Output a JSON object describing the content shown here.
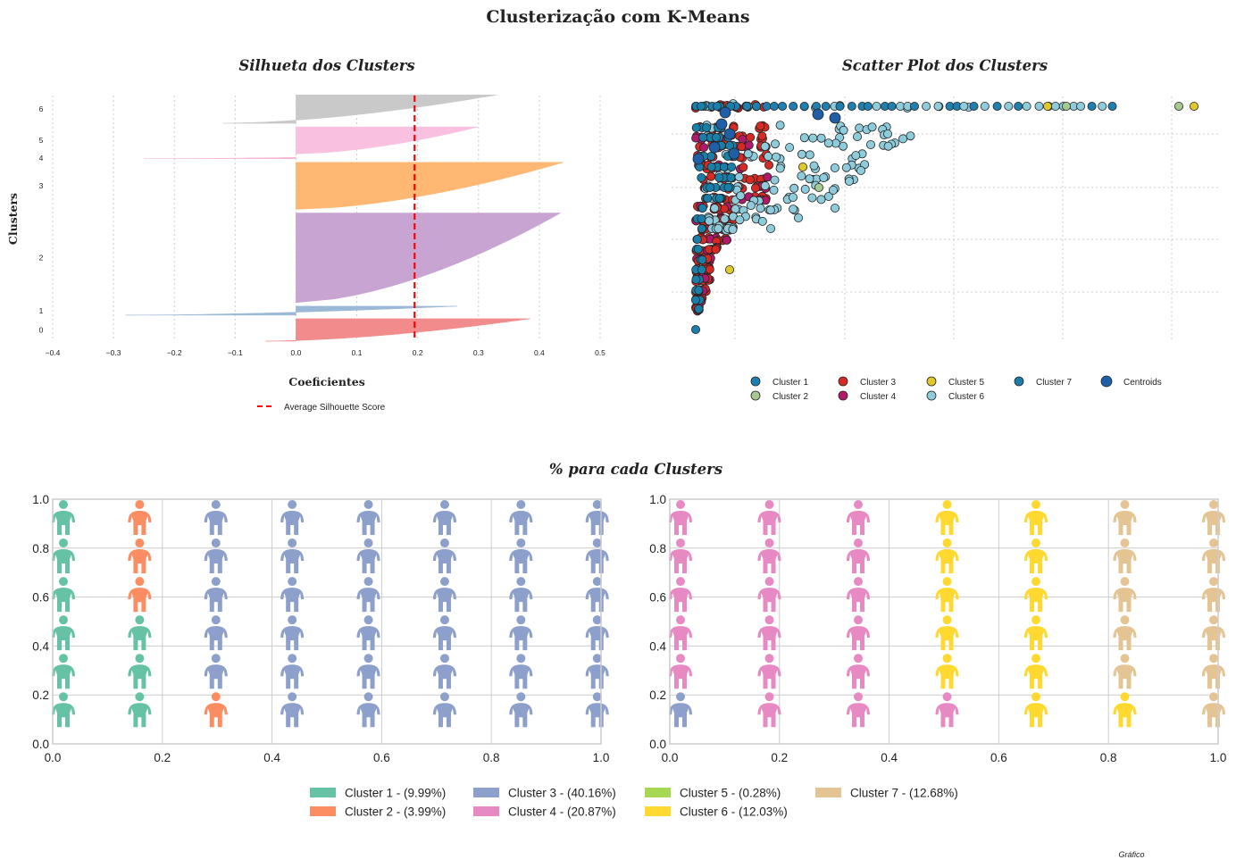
{
  "figure": {
    "title": "Clusterização com K-Means",
    "footer": "Gráfico"
  },
  "chart_data": [
    {
      "type": "area",
      "id": "silhouette",
      "title": "Silhueta dos Clusters",
      "xlabel": "Coeficientes",
      "ylabel": "Clusters",
      "xlim": [
        -0.4,
        0.5
      ],
      "xticks": [
        "−0.4",
        "−0.3",
        "−0.2",
        "−0.1",
        "0.0",
        "0.1",
        "0.2",
        "0.3",
        "0.4",
        "0.5"
      ],
      "cluster_labels": [
        "0",
        "1",
        "2",
        "3",
        "4",
        "5",
        "6"
      ],
      "average_silhouette_score": 0.195,
      "average_label": "Average Silhouette Score",
      "clusters": [
        {
          "label": "0",
          "color": "#f28c8c",
          "min": -0.05,
          "max": 0.385,
          "size": 0.1
        },
        {
          "label": "1",
          "color": "#9bb8d6",
          "min": -0.28,
          "max": 0.265,
          "size": 0.04
        },
        {
          "label": "2",
          "color": "#c8a4d2",
          "min": 0.0,
          "max": 0.435,
          "size": 0.4
        },
        {
          "label": "3",
          "color": "#ffb874",
          "min": 0.0,
          "max": 0.44,
          "size": 0.21
        },
        {
          "label": "4",
          "color": "#f7b6d2",
          "min": -0.25,
          "max": 0.0,
          "size": 0.003
        },
        {
          "label": "5",
          "color": "#f9c0df",
          "min": 0.0,
          "max": 0.3,
          "size": 0.12
        },
        {
          "label": "6",
          "color": "#c9c9c9",
          "min": -0.12,
          "max": 0.33,
          "size": 0.127
        }
      ],
      "grid": true
    },
    {
      "type": "scatter",
      "id": "scatter",
      "title": "Scatter Plot dos Clusters",
      "grid": true,
      "legend_position": "bottom",
      "series": [
        {
          "name": "Cluster 1",
          "color": "#1f7fae"
        },
        {
          "name": "Cluster 2",
          "color": "#a6c98f"
        },
        {
          "name": "Cluster 3",
          "color": "#d62a24"
        },
        {
          "name": "Cluster 4",
          "color": "#b11a6a"
        },
        {
          "name": "Cluster 5",
          "color": "#e0c72a"
        },
        {
          "name": "Cluster 6",
          "color": "#8ecbdb"
        },
        {
          "name": "Cluster 7",
          "color": "#1a7fa8"
        },
        {
          "name": "Centroids",
          "color": "#1f5fa8"
        }
      ]
    },
    {
      "type": "bar",
      "id": "waffle",
      "title": "% para cada Clusters",
      "xlim": [
        0,
        1
      ],
      "ylim": [
        0,
        1
      ],
      "xticks": [
        "0.0",
        "0.2",
        "0.4",
        "0.6",
        "0.8",
        "1.0"
      ],
      "yticks": [
        "0.0",
        "0.2",
        "0.4",
        "0.6",
        "0.8",
        "1.0"
      ],
      "legend": [
        {
          "label": "Cluster 1 - (9.99%)",
          "color": "#66c2a5",
          "percent": 9.99
        },
        {
          "label": "Cluster 2 - (3.99%)",
          "color": "#fc8d62",
          "percent": 3.99
        },
        {
          "label": "Cluster 3 - (40.16%)",
          "color": "#8da0cb",
          "percent": 40.16
        },
        {
          "label": "Cluster 4 - (20.87%)",
          "color": "#e78ac3",
          "percent": 20.87
        },
        {
          "label": "Cluster 5 - (0.28%)",
          "color": "#a6d854",
          "percent": 0.28
        },
        {
          "label": "Cluster 6 - (12.03%)",
          "color": "#ffd92f",
          "percent": 12.03
        },
        {
          "label": "Cluster 7 - (12.68%)",
          "color": "#e5c494",
          "percent": 12.68
        }
      ]
    }
  ]
}
